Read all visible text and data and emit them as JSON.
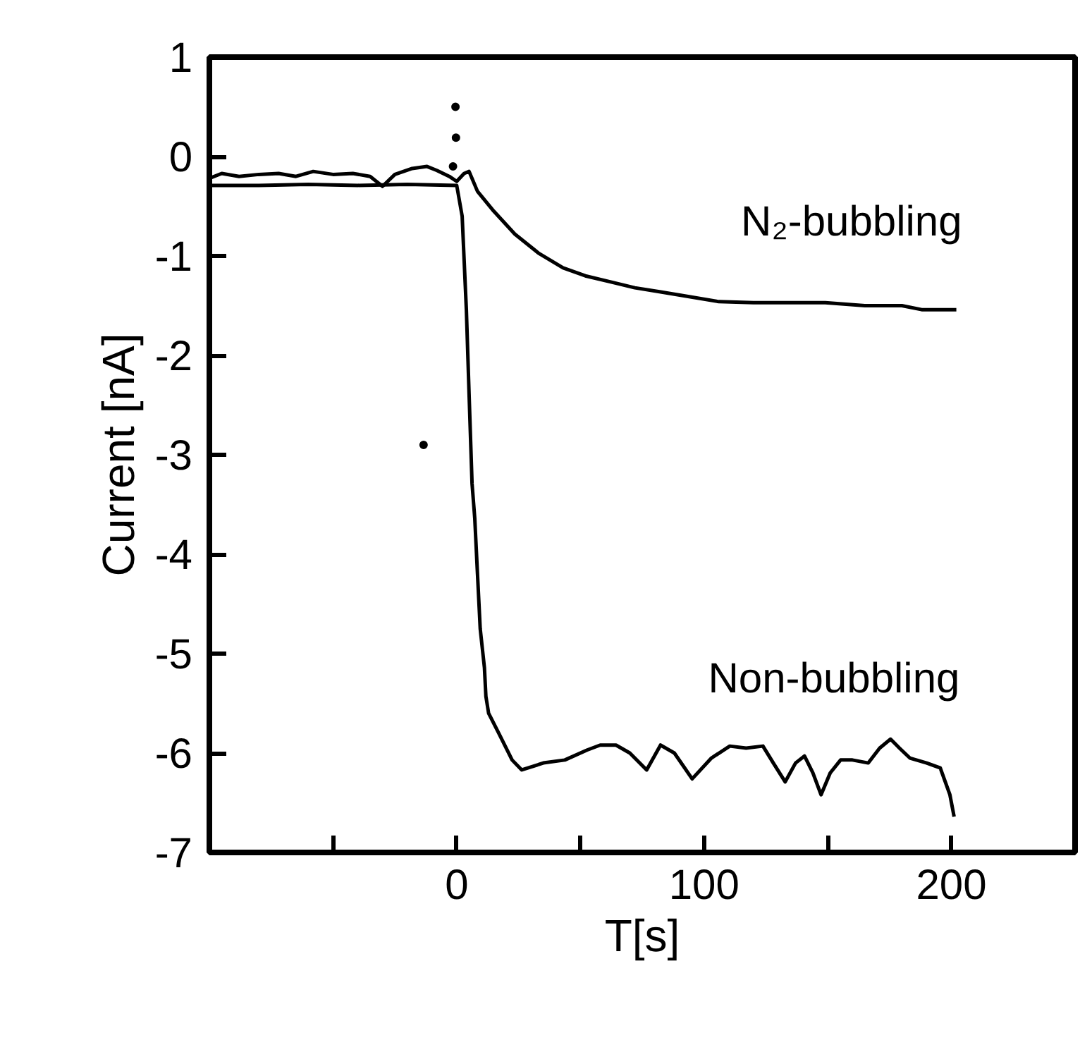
{
  "chart_data": {
    "type": "line",
    "xlabel": "T[s]",
    "ylabel": "Current [nA]",
    "xlim": [
      -100,
      250
    ],
    "xticks": [
      {
        "value": -50,
        "label": null
      },
      0,
      {
        "value": 50,
        "label": null
      },
      100,
      {
        "value": 150,
        "label": null
      },
      200
    ],
    "ylim": [
      -7,
      1
    ],
    "yticks": [
      -7,
      -6,
      -5,
      -4,
      -3,
      -2,
      -1,
      0,
      1
    ],
    "grid": false,
    "marker": "none",
    "line_style": "solid",
    "series": [
      {
        "name": "N₂-bubbling",
        "color": "#000000",
        "x": [
          -100,
          -95,
          -88,
          -80,
          -72,
          -65,
          -58,
          -50,
          -42,
          -35,
          -30,
          -25,
          -18,
          -12,
          -8,
          -3,
          0,
          3,
          5,
          8.4,
          15,
          23.5,
          33,
          43,
          52,
          62,
          72,
          82,
          94,
          106,
          120,
          135,
          149,
          165,
          180,
          188,
          195,
          202
        ],
        "values": [
          -0.22,
          -0.17,
          -0.2,
          -0.18,
          -0.17,
          -0.2,
          -0.15,
          -0.18,
          -0.17,
          -0.2,
          -0.3,
          -0.18,
          -0.12,
          -0.1,
          -0.14,
          -0.2,
          -0.25,
          -0.17,
          -0.15,
          -0.35,
          -0.55,
          -0.78,
          -0.97,
          -1.12,
          -1.2,
          -1.26,
          -1.32,
          -1.36,
          -1.41,
          -1.46,
          -1.47,
          -1.47,
          -1.47,
          -1.5,
          -1.5,
          -1.54,
          -1.54,
          -1.54
        ]
      },
      {
        "name": "Non-bubbling",
        "color": "#000000",
        "x": [
          -100,
          -80,
          -60,
          -40,
          -20,
          0,
          2.2,
          3.9,
          5,
          6.2,
          7.3,
          8.4,
          9.5,
          11.2,
          11.8,
          12.9,
          17,
          22.4,
          26.3,
          35,
          43.7,
          52.7,
          58,
          64.4,
          70,
          76.8,
          82.4,
          88,
          95.2,
          103,
          110.4,
          117,
          123.8,
          128,
          132.8,
          137,
          140.6,
          144,
          147.3,
          151,
          155.2,
          160,
          166.4,
          171,
          175.4,
          179,
          183.2,
          190,
          195.5,
          199.4,
          201.1
        ],
        "values": [
          -0.29,
          -0.29,
          -0.28,
          -0.29,
          -0.28,
          -0.29,
          -0.6,
          -1.54,
          -2.39,
          -3.29,
          -3.64,
          -4.2,
          -4.75,
          -5.14,
          -5.43,
          -5.6,
          -5.8,
          -6.07,
          -6.17,
          -6.1,
          -6.07,
          -5.97,
          -5.92,
          -5.92,
          -6.0,
          -6.17,
          -5.92,
          -6.0,
          -6.26,
          -6.05,
          -5.93,
          -5.95,
          -5.93,
          -6.1,
          -6.29,
          -6.1,
          -6.03,
          -6.2,
          -6.42,
          -6.2,
          -6.07,
          -6.07,
          -6.1,
          -5.95,
          -5.86,
          -5.95,
          -6.05,
          -6.1,
          -6.15,
          -6.42,
          -6.64
        ]
      },
      {
        "type": "scatter",
        "marker": "circle",
        "color": "#000000",
        "x": [
          -13.4,
          -0.5,
          -0.3,
          -1.5
        ],
        "values": [
          -2.9,
          0.5,
          0.19,
          -0.1
        ]
      }
    ]
  }
}
